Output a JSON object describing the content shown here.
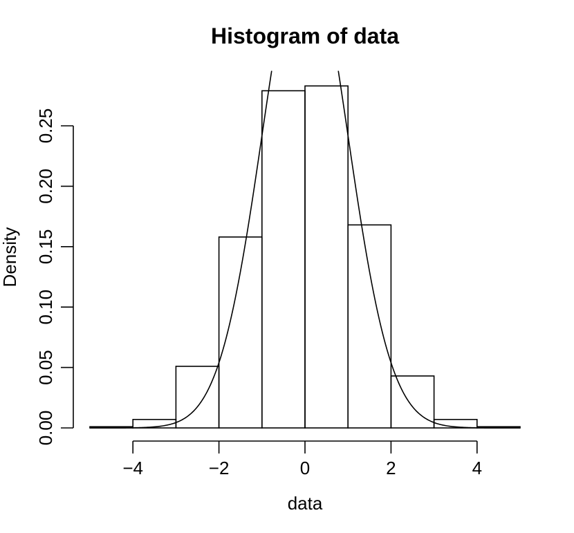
{
  "chart_data": {
    "type": "bar",
    "title": "Histogram of data",
    "xlabel": "data",
    "ylabel": "Density",
    "xlim": [
      -5,
      5
    ],
    "ylim": [
      0,
      0.25
    ],
    "bin_edges": [
      -5,
      -4,
      -3,
      -2,
      -1,
      0,
      1,
      2,
      3,
      4,
      5
    ],
    "values": [
      0.001,
      0.007,
      0.051,
      0.158,
      0.279,
      0.283,
      0.168,
      0.043,
      0.007,
      0.001
    ],
    "x_ticks": [
      -4,
      -2,
      0,
      2,
      4
    ],
    "x_tick_labels": [
      "−4",
      "−2",
      "0",
      "2",
      "4"
    ],
    "y_ticks": [
      0,
      0.05,
      0.1,
      0.15,
      0.2,
      0.25
    ],
    "y_tick_labels": [
      "0.00",
      "0.05",
      "0.10",
      "0.15",
      "0.20",
      "0.25"
    ],
    "curve": {
      "type": "normal-density",
      "mean": 0,
      "sd": 1
    },
    "grid": false,
    "legend": "none"
  }
}
